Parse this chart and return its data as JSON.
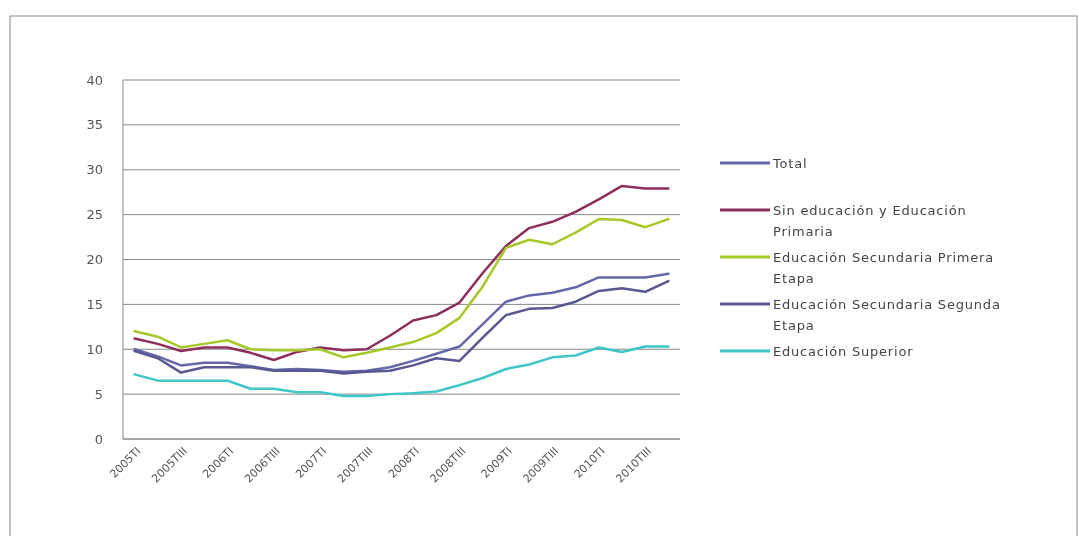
{
  "chart_data": {
    "type": "line",
    "categories": [
      "2005TI",
      null,
      "2005TIII",
      null,
      "2006TI",
      null,
      "2006TIII",
      null,
      "2007TI",
      null,
      "2007TIII",
      null,
      "2008TI",
      null,
      "2008TIII",
      null,
      "2009TI",
      null,
      "2009TIII",
      null,
      "2010TI",
      null,
      "2010TIII",
      null
    ],
    "ylim": [
      0,
      40
    ],
    "yticks": [
      0,
      5,
      10,
      15,
      20,
      25,
      30,
      35,
      40
    ],
    "grid": "y",
    "legend": "right",
    "marker": "none",
    "line_style": "solid",
    "series": [
      {
        "name": "Total",
        "color": "#6468a8",
        "values": [
          10.0,
          9.2,
          8.2,
          8.5,
          8.5,
          8.1,
          7.7,
          7.8,
          7.7,
          7.5,
          7.6,
          8.0,
          8.7,
          9.5,
          10.3,
          12.8,
          15.3,
          16.0,
          16.3,
          16.9,
          18.0,
          18.0,
          18.0,
          18.4
        ]
      },
      {
        "name": "Sin educación y Educación Primaria",
        "color": "#8e2e5c",
        "values": [
          11.2,
          10.6,
          9.8,
          10.2,
          10.2,
          9.6,
          8.8,
          9.7,
          10.2,
          9.9,
          10.0,
          11.5,
          13.2,
          13.8,
          15.2,
          18.5,
          21.5,
          23.5,
          24.2,
          25.3,
          26.7,
          28.2,
          27.9,
          27.9
        ]
      },
      {
        "name": "Educación Secundaria Primera Etapa",
        "color": "#a6c828",
        "values": [
          12.0,
          11.4,
          10.2,
          10.6,
          11.0,
          10.0,
          9.9,
          9.9,
          10.0,
          9.1,
          9.6,
          10.2,
          10.8,
          11.8,
          13.5,
          17.0,
          21.3,
          22.2,
          21.7,
          23.0,
          24.5,
          24.4,
          23.6,
          24.5
        ]
      },
      {
        "name": "Educación Secundaria Segunda Etapa",
        "color": "#5a5890",
        "values": [
          9.8,
          9.0,
          7.4,
          8.0,
          8.0,
          8.0,
          7.6,
          7.6,
          7.6,
          7.3,
          7.5,
          7.6,
          8.2,
          9.0,
          8.7,
          11.3,
          13.8,
          14.5,
          14.6,
          15.3,
          16.5,
          16.8,
          16.4,
          17.6
        ]
      },
      {
        "name": "Educación Superior",
        "color": "#3ec6c8",
        "values": [
          7.2,
          6.5,
          6.5,
          6.5,
          6.5,
          5.6,
          5.6,
          5.2,
          5.2,
          4.8,
          4.8,
          5.0,
          5.1,
          5.3,
          6.0,
          6.8,
          7.8,
          8.3,
          9.1,
          9.3,
          10.2,
          9.7,
          10.3,
          10.3
        ]
      }
    ]
  }
}
